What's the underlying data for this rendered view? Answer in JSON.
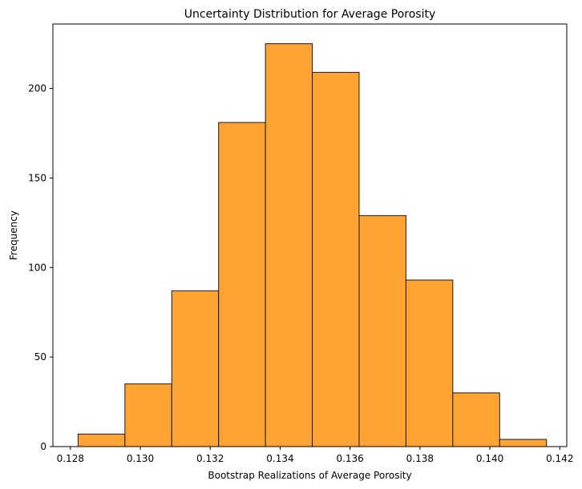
{
  "chart_data": {
    "type": "bar",
    "title": "Uncertainty Distribution for Average Porosity",
    "xlabel": "Bootstrap Realizations of Average Porosity",
    "ylabel": "Frequency",
    "xlim": [
      0.1275,
      0.1422
    ],
    "ylim": [
      0,
      236
    ],
    "bin_edges": [
      0.12822,
      0.12956,
      0.1309,
      0.13224,
      0.13358,
      0.13492,
      0.13626,
      0.1376,
      0.13894,
      0.14028,
      0.14162
    ],
    "values": [
      7,
      35,
      87,
      181,
      225,
      209,
      129,
      93,
      30,
      4
    ],
    "xticks": [
      0.128,
      0.13,
      0.132,
      0.134,
      0.136,
      0.138,
      0.14,
      0.142
    ],
    "xtick_labels": [
      "0.128",
      "0.130",
      "0.132",
      "0.134",
      "0.136",
      "0.138",
      "0.140",
      "0.142"
    ],
    "yticks": [
      0,
      50,
      100,
      150,
      200
    ],
    "ytick_labels": [
      "0",
      "50",
      "100",
      "150",
      "200"
    ],
    "bar_color": "#FFA333",
    "edge_color": "#1a1a1a",
    "grid": false,
    "legend": false
  }
}
